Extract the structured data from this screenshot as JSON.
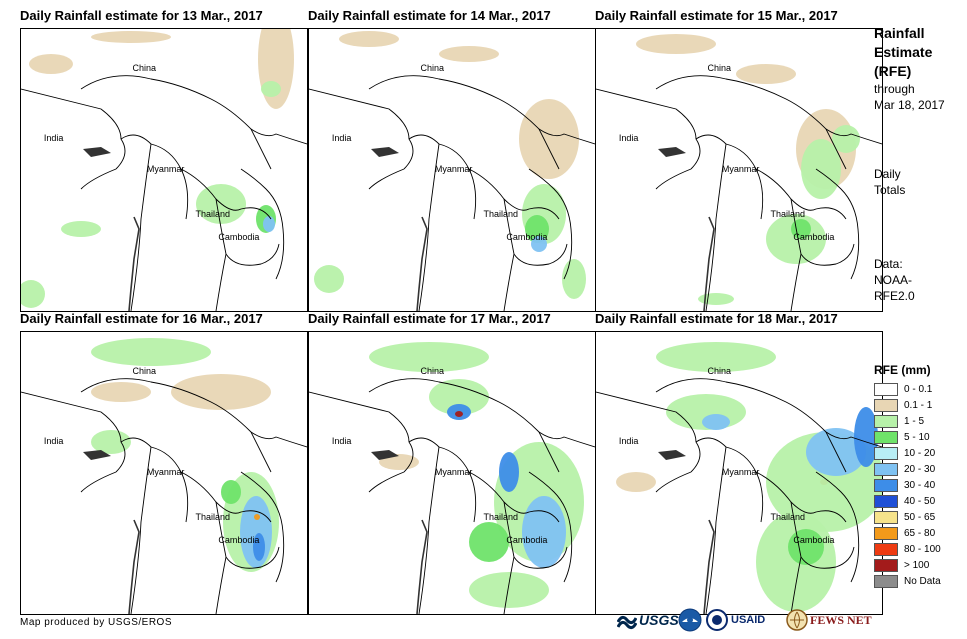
{
  "panels": [
    {
      "title": "Daily Rainfall estimate for 13 Mar., 2017"
    },
    {
      "title": "Daily Rainfall estimate for 14 Mar., 2017"
    },
    {
      "title": "Daily Rainfall estimate for 15 Mar., 2017"
    },
    {
      "title": "Daily Rainfall estimate for 16 Mar., 2017"
    },
    {
      "title": "Daily Rainfall estimate for 17 Mar., 2017"
    },
    {
      "title": "Daily Rainfall estimate for 18 Mar., 2017"
    }
  ],
  "countries": {
    "china": "China",
    "india": "India",
    "myanmar": "Myanmar",
    "thailand": "Thailand",
    "cambodia": "Cambodia"
  },
  "sidebar": {
    "title_line1": "Rainfall",
    "title_line2": "Estimate",
    "title_line3": "(RFE)",
    "through": "through",
    "date": "Mar 18, 2017",
    "totals_line1": "Daily",
    "totals_line2": "Totals",
    "data_line1": "Data:",
    "data_line2": "NOAA-",
    "data_line3": "RFE2.0"
  },
  "legend": {
    "title": "RFE (mm)",
    "items": [
      {
        "label": "0 - 0.1",
        "color": "#ffffff"
      },
      {
        "label": "0.1 - 1",
        "color": "#e8d6b4"
      },
      {
        "label": "1 - 5",
        "color": "#b7f1a9"
      },
      {
        "label": "5 - 10",
        "color": "#6fe36a"
      },
      {
        "label": "10 - 20",
        "color": "#b8eef5"
      },
      {
        "label": "20 - 30",
        "color": "#7fc2f2"
      },
      {
        "label": "30 - 40",
        "color": "#3d8de8"
      },
      {
        "label": "40 - 50",
        "color": "#1e4fd6"
      },
      {
        "label": "50 - 65",
        "color": "#f6e38b"
      },
      {
        "label": "65 - 80",
        "color": "#f39a1a"
      },
      {
        "label": "80 - 100",
        "color": "#ee3b12"
      },
      {
        "label": "> 100",
        "color": "#a31b1b"
      },
      {
        "label": "No Data",
        "color": "#8c8c8c"
      }
    ]
  },
  "footer": {
    "credit": "Map produced by USGS/EROS",
    "logos": {
      "usgs": "USGS",
      "usaid": "USAID",
      "fewsnet": "FEWS NET"
    }
  }
}
